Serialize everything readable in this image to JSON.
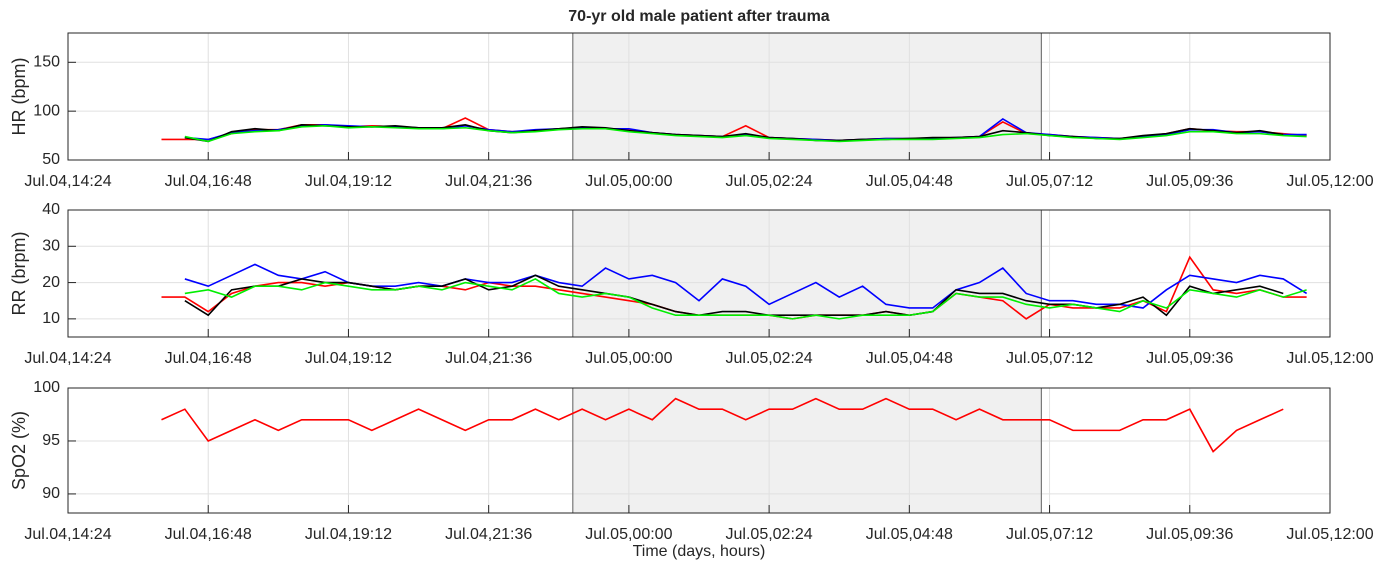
{
  "chart_data": [
    {
      "type": "line",
      "title": "70-yr old male patient after trauma",
      "ylabel": "HR (bpm)",
      "xlim": [
        14.4,
        36
      ],
      "ylim": [
        50,
        180
      ],
      "yticks": [
        50,
        100,
        150
      ],
      "xticks": [
        {
          "value": 14.4,
          "label": "Jul.04,14:24"
        },
        {
          "value": 16.8,
          "label": "Jul.04,16:48"
        },
        {
          "value": 19.2,
          "label": "Jul.04,19:12"
        },
        {
          "value": 21.6,
          "label": "Jul.04,21:36"
        },
        {
          "value": 24,
          "label": "Jul.05,00:00"
        },
        {
          "value": 26.4,
          "label": "Jul.05,02:24"
        },
        {
          "value": 28.8,
          "label": "Jul.05,04:48"
        },
        {
          "value": 31.2,
          "label": "Jul.05,07:12"
        },
        {
          "value": 33.6,
          "label": "Jul.05,09:36"
        },
        {
          "value": 36,
          "label": "Jul.05,12:00"
        }
      ],
      "grid": true,
      "shaded_span": [
        23.04,
        31.06
      ],
      "x": [
        16.0,
        16.4,
        16.8,
        17.2,
        17.6,
        18.0,
        18.4,
        18.8,
        19.2,
        19.6,
        20.0,
        20.4,
        20.8,
        21.2,
        21.6,
        22.0,
        22.4,
        22.8,
        23.2,
        23.6,
        24.0,
        24.4,
        24.8,
        25.2,
        25.6,
        26.0,
        26.4,
        26.8,
        27.2,
        27.6,
        28.0,
        28.4,
        28.8,
        29.2,
        29.6,
        30.0,
        30.4,
        30.8,
        31.2,
        31.6,
        32.0,
        32.4,
        32.8,
        33.2,
        33.6,
        34.0,
        34.4,
        34.8,
        35.2,
        35.6
      ],
      "series": [
        {
          "color": "#ff0000",
          "values": [
            71,
            71,
            71,
            77,
            81,
            81,
            86,
            86,
            84,
            85,
            84,
            83,
            82,
            93,
            81,
            79,
            80,
            82,
            83,
            82,
            81,
            78,
            76,
            75,
            74,
            85,
            73,
            72,
            71,
            70,
            71,
            72,
            72,
            72,
            73,
            74,
            89,
            77,
            76,
            74,
            73,
            72,
            74,
            77,
            82,
            80,
            79,
            79,
            77,
            75
          ]
        },
        {
          "color": "#0000ff",
          "values": [
            null,
            73,
            71,
            78,
            80,
            81,
            85,
            86,
            85,
            84,
            84,
            83,
            82,
            85,
            81,
            79,
            81,
            82,
            83,
            82,
            82,
            78,
            76,
            75,
            74,
            76,
            73,
            72,
            71,
            70,
            71,
            72,
            72,
            72,
            73,
            74,
            92,
            78,
            76,
            74,
            73,
            72,
            74,
            76,
            81,
            81,
            78,
            79,
            76,
            76
          ]
        },
        {
          "color": "#000000",
          "values": [
            null,
            73,
            69,
            79,
            82,
            80,
            86,
            85,
            84,
            84,
            85,
            83,
            83,
            86,
            80,
            78,
            80,
            82,
            84,
            83,
            80,
            78,
            76,
            75,
            74,
            77,
            73,
            72,
            70,
            70,
            71,
            71,
            72,
            73,
            73,
            74,
            80,
            78,
            75,
            74,
            72,
            72,
            75,
            77,
            82,
            80,
            78,
            80,
            76,
            null
          ]
        },
        {
          "color": "#00ee00",
          "values": [
            null,
            74,
            69,
            77,
            79,
            80,
            84,
            85,
            83,
            84,
            83,
            82,
            82,
            83,
            80,
            78,
            79,
            81,
            82,
            82,
            79,
            77,
            75,
            74,
            73,
            75,
            72,
            71,
            70,
            69,
            70,
            71,
            71,
            71,
            72,
            73,
            76,
            77,
            75,
            73,
            72,
            71,
            73,
            75,
            79,
            79,
            77,
            77,
            75,
            74
          ]
        }
      ]
    },
    {
      "type": "line",
      "ylabel": "RR (brpm)",
      "xlim": [
        14.4,
        36
      ],
      "ylim": [
        5,
        40
      ],
      "yticks": [
        10,
        20,
        30,
        40
      ],
      "xticks": [
        {
          "value": 14.4,
          "label": "Jul.04,14:24"
        },
        {
          "value": 16.8,
          "label": "Jul.04,16:48"
        },
        {
          "value": 19.2,
          "label": "Jul.04,19:12"
        },
        {
          "value": 21.6,
          "label": "Jul.04,21:36"
        },
        {
          "value": 24,
          "label": "Jul.05,00:00"
        },
        {
          "value": 26.4,
          "label": "Jul.05,02:24"
        },
        {
          "value": 28.8,
          "label": "Jul.05,04:48"
        },
        {
          "value": 31.2,
          "label": "Jul.05,07:12"
        },
        {
          "value": 33.6,
          "label": "Jul.05,09:36"
        },
        {
          "value": 36,
          "label": "Jul.05,12:00"
        }
      ],
      "grid": true,
      "shaded_span": [
        23.04,
        31.06
      ],
      "x": [
        16.0,
        16.4,
        16.8,
        17.2,
        17.6,
        18.0,
        18.4,
        18.8,
        19.2,
        19.6,
        20.0,
        20.4,
        20.8,
        21.2,
        21.6,
        22.0,
        22.4,
        22.8,
        23.2,
        23.6,
        24.0,
        24.4,
        24.8,
        25.2,
        25.6,
        26.0,
        26.4,
        26.8,
        27.2,
        27.6,
        28.0,
        28.4,
        28.8,
        29.2,
        29.6,
        30.0,
        30.4,
        30.8,
        31.2,
        31.6,
        32.0,
        32.4,
        32.8,
        33.2,
        33.6,
        34.0,
        34.4,
        34.8,
        35.2,
        35.6
      ],
      "series": [
        {
          "color": "#ff0000",
          "values": [
            16,
            16,
            12,
            17,
            19,
            20,
            20,
            19,
            20,
            19,
            18,
            19,
            19,
            18,
            20,
            19,
            19,
            18,
            17,
            16,
            15,
            14,
            12,
            11,
            11,
            11,
            11,
            10,
            11,
            11,
            11,
            12,
            11,
            12,
            17,
            16,
            15,
            10,
            14,
            13,
            13,
            13,
            15,
            12,
            27,
            18,
            17,
            18,
            16,
            16
          ]
        },
        {
          "color": "#0000ff",
          "values": [
            null,
            21,
            19,
            22,
            25,
            22,
            21,
            23,
            20,
            19,
            19,
            20,
            19,
            21,
            20,
            20,
            22,
            20,
            19,
            24,
            21,
            22,
            20,
            15,
            21,
            19,
            14,
            17,
            20,
            16,
            19,
            14,
            13,
            13,
            18,
            20,
            24,
            17,
            15,
            15,
            14,
            14,
            13,
            18,
            22,
            21,
            20,
            22,
            21,
            17
          ]
        },
        {
          "color": "#000000",
          "values": [
            null,
            15,
            11,
            18,
            19,
            19,
            21,
            20,
            20,
            19,
            18,
            19,
            19,
            21,
            18,
            19,
            22,
            19,
            18,
            17,
            16,
            14,
            12,
            11,
            12,
            12,
            11,
            11,
            11,
            11,
            11,
            12,
            11,
            12,
            18,
            17,
            17,
            15,
            14,
            14,
            13,
            14,
            16,
            11,
            19,
            17,
            18,
            19,
            17,
            null
          ]
        },
        {
          "color": "#00ee00",
          "values": [
            null,
            17,
            18,
            16,
            19,
            19,
            18,
            20,
            19,
            18,
            18,
            19,
            18,
            20,
            19,
            18,
            21,
            17,
            16,
            17,
            16,
            13,
            11,
            11,
            11,
            11,
            11,
            10,
            11,
            10,
            11,
            11,
            11,
            12,
            17,
            16,
            16,
            14,
            13,
            14,
            13,
            12,
            15,
            13,
            18,
            17,
            16,
            18,
            16,
            18
          ]
        }
      ]
    },
    {
      "type": "line",
      "ylabel": "SpO2 (%)",
      "xlabel": "Time (days, hours)",
      "xlim": [
        14.4,
        36
      ],
      "ylim": [
        88.2,
        100
      ],
      "yticks": [
        90,
        95,
        100
      ],
      "xticks": [
        {
          "value": 14.4,
          "label": "Jul.04,14:24"
        },
        {
          "value": 16.8,
          "label": "Jul.04,16:48"
        },
        {
          "value": 19.2,
          "label": "Jul.04,19:12"
        },
        {
          "value": 21.6,
          "label": "Jul.04,21:36"
        },
        {
          "value": 24,
          "label": "Jul.05,00:00"
        },
        {
          "value": 26.4,
          "label": "Jul.05,02:24"
        },
        {
          "value": 28.8,
          "label": "Jul.05,04:48"
        },
        {
          "value": 31.2,
          "label": "Jul.05,07:12"
        },
        {
          "value": 33.6,
          "label": "Jul.05,09:36"
        },
        {
          "value": 36,
          "label": "Jul.05,12:00"
        }
      ],
      "grid": true,
      "shaded_span": [
        23.04,
        31.06
      ],
      "x": [
        16.0,
        16.4,
        16.8,
        17.2,
        17.6,
        18.0,
        18.4,
        18.8,
        19.2,
        19.6,
        20.0,
        20.4,
        20.8,
        21.2,
        21.6,
        22.0,
        22.4,
        22.8,
        23.2,
        23.6,
        24.0,
        24.4,
        24.8,
        25.2,
        25.6,
        26.0,
        26.4,
        26.8,
        27.2,
        27.6,
        28.0,
        28.4,
        28.8,
        29.2,
        29.6,
        30.0,
        30.4,
        30.8,
        31.2,
        31.6,
        32.0,
        32.4,
        32.8,
        33.2,
        33.6,
        34.0,
        34.4,
        34.8,
        35.2,
        35.6
      ],
      "series": [
        {
          "color": "#ff0000",
          "values": [
            97,
            98,
            95,
            96,
            97,
            96,
            97,
            97,
            97,
            96,
            97,
            98,
            97,
            96,
            97,
            97,
            98,
            97,
            98,
            97,
            98,
            97,
            99,
            98,
            98,
            97,
            98,
            98,
            99,
            98,
            98,
            99,
            98,
            98,
            97,
            98,
            97,
            97,
            97,
            96,
            96,
            96,
            97,
            97,
            98,
            94,
            96,
            97,
            98,
            null
          ]
        }
      ]
    }
  ]
}
